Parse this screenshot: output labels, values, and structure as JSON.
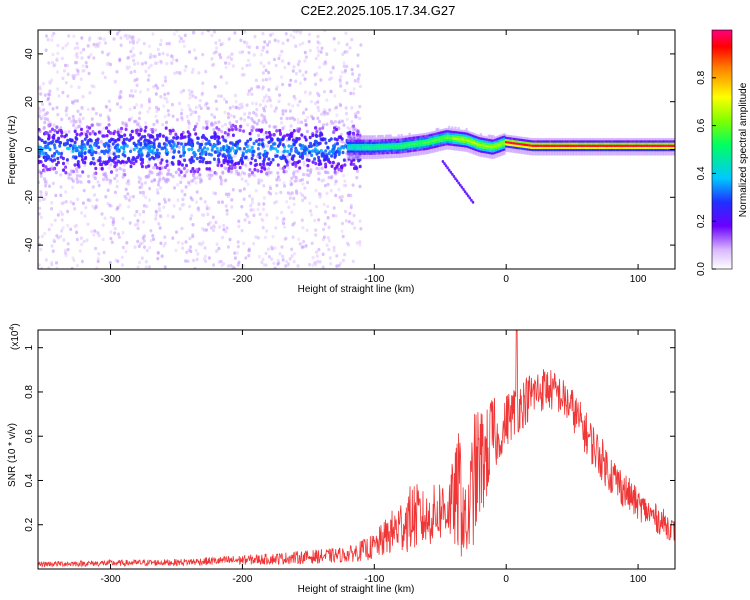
{
  "title": "C2E2.2025.105.17.34.G27",
  "chart_data": [
    {
      "type": "heatmap",
      "xlabel": "Height of straight line (km)",
      "ylabel": "Frequency (Hz)",
      "xlim": [
        -355,
        128
      ],
      "ylim": [
        -50,
        50
      ],
      "xticks": [
        -300,
        -200,
        -100,
        0,
        100
      ],
      "yticks": [
        -40,
        -20,
        0,
        20,
        40
      ],
      "colorbar": {
        "label": "Normalized spectral amplitude",
        "range": [
          0,
          1
        ],
        "ticks": [
          0.0,
          0.2,
          0.4,
          0.6,
          0.8
        ]
      },
      "ridge": {
        "x": [
          -355,
          -300,
          -200,
          -120,
          -100,
          -80,
          -60,
          -45,
          -30,
          -20,
          -10,
          0,
          20,
          60,
          128
        ],
        "y": [
          1,
          1,
          1,
          1,
          1,
          1.5,
          3,
          5,
          4,
          2,
          1,
          3,
          1.5,
          1.5,
          1.5
        ]
      }
    },
    {
      "type": "line",
      "xlabel": "Height of straight line (km)",
      "ylabel": "SNR (10 * v/v)",
      "yscale_label": "(x10",
      "yscale_exp": "4",
      "yscale_close": ")",
      "xlim": [
        -355,
        128
      ],
      "ylim": [
        0,
        1.08
      ],
      "xticks": [
        -300,
        -200,
        -100,
        0,
        100
      ],
      "yticks": [
        0.2,
        0.4,
        0.6,
        0.8,
        1.0
      ],
      "color": "#ef3535",
      "envelope": {
        "x": [
          -355,
          -250,
          -180,
          -140,
          -120,
          -100,
          -90,
          -80,
          -70,
          -60,
          -50,
          -45,
          -40,
          -35,
          -30,
          -25,
          -20,
          -15,
          -10,
          -5,
          0,
          10,
          20,
          30,
          40,
          50,
          60,
          70,
          80,
          90,
          100,
          110,
          120,
          128
        ],
        "low": [
          0.01,
          0.015,
          0.02,
          0.025,
          0.03,
          0.04,
          0.06,
          0.07,
          0.08,
          0.1,
          0.12,
          0.14,
          0.1,
          0.05,
          0.03,
          0.1,
          0.2,
          0.3,
          0.4,
          0.5,
          0.55,
          0.62,
          0.68,
          0.72,
          0.7,
          0.63,
          0.52,
          0.42,
          0.33,
          0.27,
          0.22,
          0.18,
          0.14,
          0.12
        ],
        "high": [
          0.035,
          0.045,
          0.07,
          0.09,
          0.1,
          0.16,
          0.24,
          0.32,
          0.4,
          0.34,
          0.42,
          0.4,
          0.5,
          0.66,
          0.3,
          0.7,
          0.75,
          0.72,
          0.82,
          0.62,
          0.8,
          0.85,
          0.9,
          0.92,
          0.88,
          0.82,
          0.72,
          0.62,
          0.52,
          0.44,
          0.36,
          0.31,
          0.27,
          0.22
        ]
      },
      "peak": {
        "x": 8,
        "y": 1.08
      }
    }
  ]
}
